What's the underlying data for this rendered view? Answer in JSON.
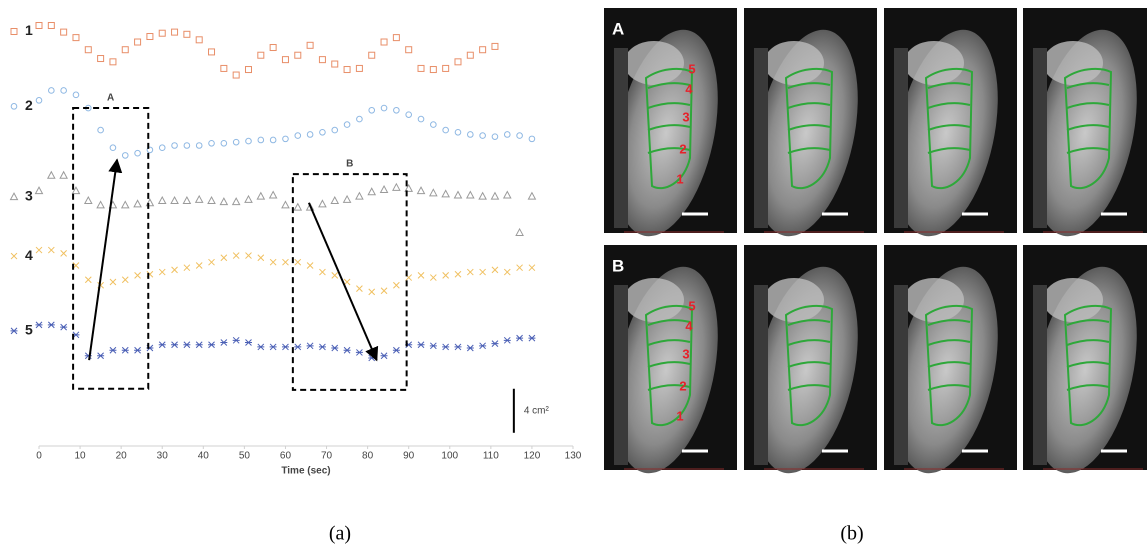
{
  "chart_data": {
    "type": "scatter",
    "xlabel": "Time (sec)",
    "xlim": [
      0,
      130
    ],
    "xticks": [
      0,
      10,
      20,
      30,
      40,
      50,
      60,
      70,
      80,
      90,
      100,
      110,
      120,
      130
    ],
    "ylim": [
      1.3,
      40
    ],
    "x": [
      0,
      3,
      6,
      9,
      12,
      15,
      18,
      21,
      24,
      27,
      30,
      33,
      36,
      39,
      42,
      45,
      48,
      51,
      54,
      57,
      60,
      63,
      66,
      69,
      72,
      75,
      78,
      81,
      84,
      87,
      90,
      93,
      96,
      99,
      102,
      105,
      108,
      111,
      114,
      117,
      120
    ],
    "series": [
      {
        "name": "1",
        "color": "#e88e68",
        "marker": "square",
        "values": [
          39.5,
          39.5,
          38.9,
          38.4,
          37.3,
          36.5,
          36.2,
          37.3,
          38.0,
          38.5,
          38.8,
          38.9,
          38.7,
          38.2,
          37.1,
          35.6,
          35.0,
          35.5,
          36.8,
          37.5,
          36.4,
          36.8,
          37.7,
          36.4,
          36.0,
          35.5,
          35.6,
          36.8,
          38.0,
          38.4,
          37.3,
          35.6,
          35.5,
          35.6,
          36.2,
          36.8,
          37.3,
          37.6,
          null,
          null,
          null
        ]
      },
      {
        "name": "2",
        "color": "#8fb8e3",
        "marker": "circle",
        "values": [
          32.7,
          33.6,
          33.6,
          33.2,
          32.0,
          30.0,
          28.4,
          27.7,
          27.9,
          28.2,
          28.4,
          28.6,
          28.6,
          28.6,
          28.8,
          28.8,
          28.9,
          29.0,
          29.1,
          29.1,
          29.2,
          29.5,
          29.6,
          29.8,
          30.0,
          30.5,
          31.0,
          31.8,
          32.0,
          31.8,
          31.4,
          31.0,
          30.5,
          30.0,
          29.8,
          29.6,
          29.5,
          29.4,
          29.6,
          29.5,
          29.2
        ]
      },
      {
        "name": "3",
        "color": "#9a9a9a",
        "marker": "triangle",
        "values": [
          24.5,
          25.9,
          25.9,
          24.5,
          23.6,
          23.2,
          23.2,
          23.2,
          23.3,
          23.4,
          23.6,
          23.6,
          23.6,
          23.7,
          23.6,
          23.5,
          23.5,
          23.7,
          24.0,
          24.1,
          23.2,
          23.0,
          23.0,
          23.3,
          23.6,
          23.7,
          24.0,
          24.4,
          24.6,
          24.8,
          24.7,
          24.5,
          24.3,
          24.2,
          24.1,
          24.1,
          24.0,
          24.0,
          24.1,
          20.7,
          24.0
        ]
      },
      {
        "name": "4",
        "color": "#f0c060",
        "marker": "x",
        "values": [
          19.1,
          19.1,
          18.8,
          17.7,
          16.4,
          15.9,
          16.2,
          16.4,
          16.8,
          16.9,
          17.1,
          17.3,
          17.5,
          17.7,
          18.0,
          18.4,
          18.6,
          18.6,
          18.4,
          18.0,
          18.0,
          18.0,
          17.7,
          17.1,
          16.8,
          16.2,
          15.6,
          15.3,
          15.4,
          15.9,
          16.6,
          16.8,
          16.6,
          16.8,
          16.9,
          17.1,
          17.1,
          17.3,
          17.1,
          17.5,
          17.5
        ]
      },
      {
        "name": "5",
        "color": "#4a5fb5",
        "marker": "star",
        "values": [
          12.3,
          12.3,
          12.1,
          11.4,
          9.5,
          9.5,
          10.0,
          10.0,
          10.0,
          10.2,
          10.5,
          10.5,
          10.5,
          10.5,
          10.5,
          10.7,
          10.9,
          10.7,
          10.3,
          10.3,
          10.3,
          10.3,
          10.4,
          10.3,
          10.2,
          10.0,
          9.8,
          9.3,
          9.5,
          10.0,
          10.5,
          10.5,
          10.4,
          10.3,
          10.3,
          10.2,
          10.4,
          10.6,
          10.9,
          11.1,
          11.1
        ]
      }
    ],
    "boxes": [
      {
        "label": "A",
        "x": [
          8.3,
          26.6
        ],
        "y": [
          6.5,
          32.0
        ],
        "arrow": {
          "x": [
            12.2,
            19.0
          ],
          "y": [
            9.1,
            27.3
          ]
        }
      },
      {
        "label": "B",
        "x": [
          61.8,
          89.5
        ],
        "y": [
          6.4,
          26.0
        ],
        "arrow": {
          "x": [
            65.7,
            82.2
          ],
          "y": [
            23.4,
            9.1
          ]
        }
      }
    ],
    "scale_bar": {
      "value": 4,
      "label": "4 cm²",
      "x": 115.6,
      "y": 2.5
    }
  },
  "panel_labels": [
    "(a)",
    "(b)"
  ],
  "image_rows": [
    {
      "label": "A",
      "numbers": [
        "5",
        "4",
        "3",
        "2",
        "1"
      ]
    },
    {
      "label": "B",
      "numbers": [
        "5",
        "4",
        "3",
        "2",
        "1"
      ]
    }
  ]
}
